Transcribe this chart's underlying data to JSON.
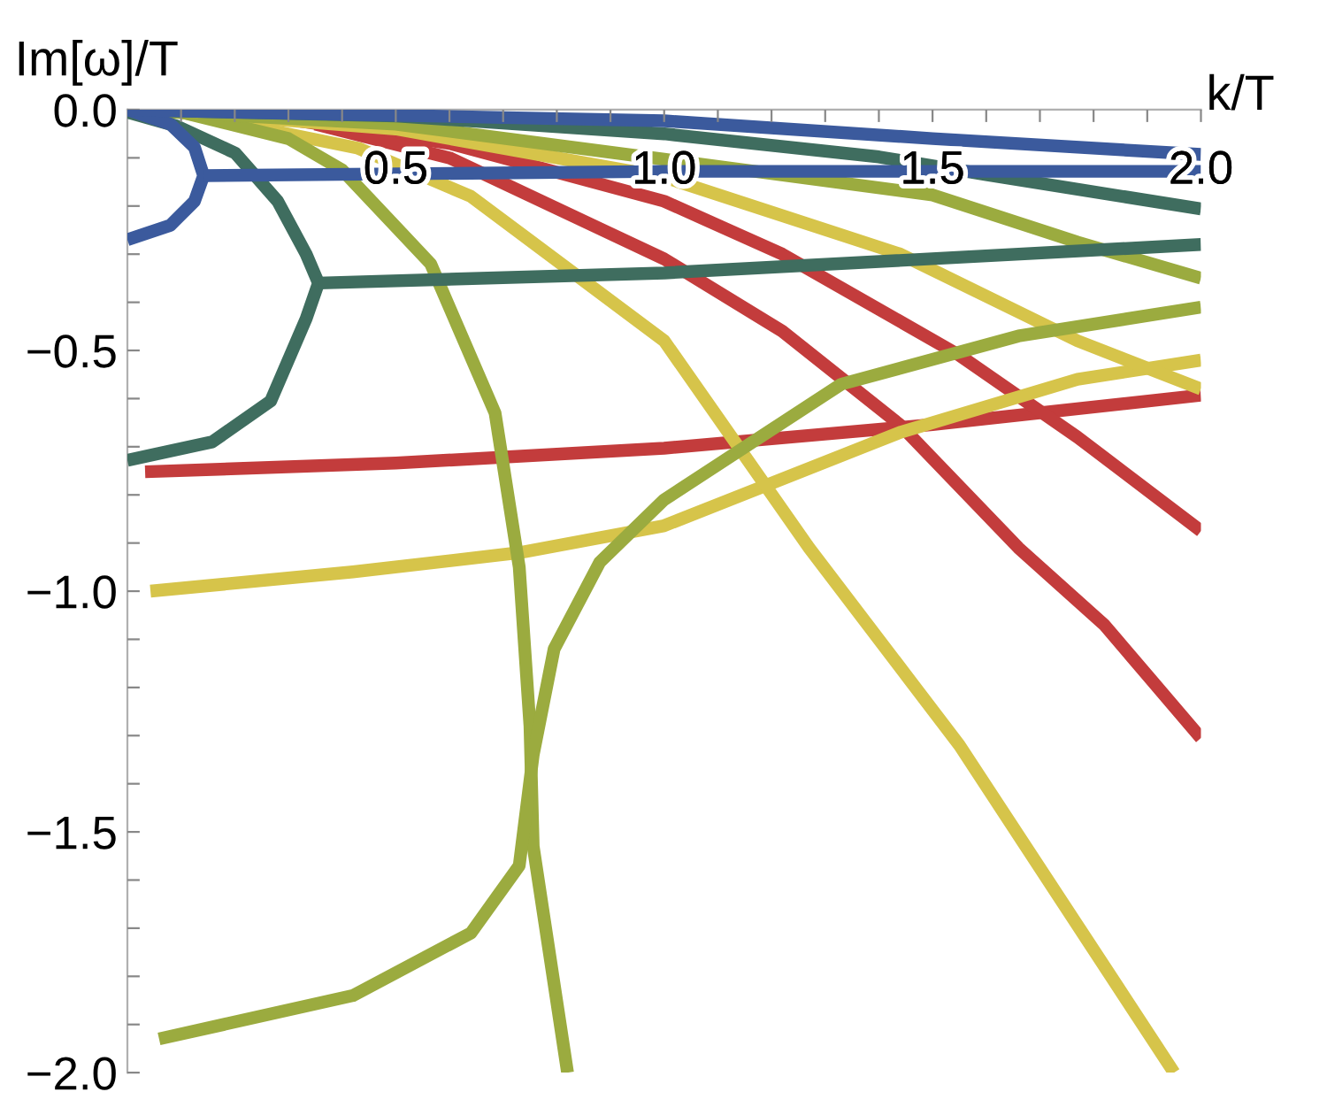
{
  "chart_data": {
    "type": "line",
    "xlabel": "k/T",
    "ylabel": "Im[ω]/T",
    "xlim": [
      0,
      2
    ],
    "ylim": [
      -2,
      0
    ],
    "xticks": [
      {
        "value": 0.1,
        "label": null
      },
      {
        "value": 0.2,
        "label": null
      },
      {
        "value": 0.3,
        "label": null
      },
      {
        "value": 0.4,
        "label": null
      },
      0.5,
      {
        "value": 0.6,
        "label": null
      },
      {
        "value": 0.7,
        "label": null
      },
      {
        "value": 0.8,
        "label": null
      },
      {
        "value": 0.9,
        "label": null
      },
      {
        "value": 1.0,
        "label": "1.0"
      },
      {
        "value": 1.1,
        "label": null
      },
      {
        "value": 1.2,
        "label": null
      },
      {
        "value": 1.3,
        "label": null
      },
      {
        "value": 1.4,
        "label": null
      },
      1.5,
      {
        "value": 1.6,
        "label": null
      },
      {
        "value": 1.7,
        "label": null
      },
      {
        "value": 1.8,
        "label": null
      },
      {
        "value": 1.9,
        "label": null
      },
      {
        "value": 2.0,
        "label": "2.0"
      }
    ],
    "yticks": [
      {
        "value": 0.0,
        "label": "0.0"
      },
      {
        "value": -0.1,
        "label": null
      },
      {
        "value": -0.2,
        "label": null
      },
      {
        "value": -0.3,
        "label": null
      },
      {
        "value": -0.4,
        "label": null
      },
      {
        "value": -0.5,
        "label": "−0.5"
      },
      {
        "value": -0.6,
        "label": null
      },
      {
        "value": -0.7,
        "label": null
      },
      {
        "value": -0.8,
        "label": null
      },
      {
        "value": -0.9,
        "label": null
      },
      {
        "value": -1.0,
        "label": "−1.0"
      },
      {
        "value": -1.1,
        "label": null
      },
      {
        "value": -1.2,
        "label": null
      },
      {
        "value": -1.3,
        "label": null
      },
      {
        "value": -1.4,
        "label": null
      },
      {
        "value": -1.5,
        "label": "−1.5"
      },
      {
        "value": -1.6,
        "label": null
      },
      {
        "value": -1.7,
        "label": null
      },
      {
        "value": -1.8,
        "label": null
      },
      {
        "value": -1.9,
        "label": null
      },
      {
        "value": -2.0,
        "label": "−2.0"
      }
    ],
    "line_style": "solid",
    "grid": false,
    "legend": false,
    "series": [
      {
        "color": "#c33c3c",
        "x": [
          0.033,
          0.5,
          1.0,
          1.5,
          2.0
        ],
        "values": [
          -0.752,
          -0.734,
          -0.703,
          -0.654,
          -0.593
        ]
      },
      {
        "color": "#c33c3c",
        "x": [
          0.3,
          0.6,
          1.0,
          1.22,
          1.55,
          1.77,
          2.0
        ],
        "values": [
          -0.02,
          -0.07,
          -0.19,
          -0.3,
          -0.51,
          -0.68,
          -0.875
        ]
      },
      {
        "color": "#c33c3c",
        "x": [
          0.35,
          0.6,
          1.0,
          1.22,
          1.44,
          1.66,
          1.82,
          2.0
        ],
        "values": [
          -0.03,
          -0.1,
          -0.31,
          -0.46,
          -0.655,
          -0.91,
          -1.07,
          -1.305
        ]
      },
      {
        "color": "#d6c44a",
        "x": [
          0.043,
          0.42,
          0.73,
          1.0,
          1.44,
          1.77,
          2.0
        ],
        "values": [
          -1.0,
          -0.96,
          -0.92,
          -0.864,
          -0.67,
          -0.56,
          -0.52
        ]
      },
      {
        "color": "#d6c44a",
        "x": [
          0.1,
          0.5,
          1.0,
          1.44,
          1.77,
          2.0
        ],
        "values": [
          -0.005,
          -0.04,
          -0.14,
          -0.3,
          -0.48,
          -0.58
        ]
      },
      {
        "color": "#d6c44a",
        "x": [
          0.1,
          0.43,
          0.64,
          1.0,
          1.27,
          1.55,
          1.95
        ],
        "values": [
          -0.005,
          -0.08,
          -0.18,
          -0.48,
          -0.91,
          -1.32,
          -2.0
        ]
      },
      {
        "color": "#9bab3f",
        "x": [
          0.1,
          0.3,
          0.4,
          0.565,
          0.685,
          0.73,
          0.75,
          0.756,
          0.82
        ],
        "values": [
          -0.005,
          -0.06,
          -0.125,
          -0.32,
          -0.63,
          -0.95,
          -1.28,
          -1.53,
          -2.0
        ]
      },
      {
        "color": "#9bab3f",
        "x": [
          0.059,
          0.42,
          0.64,
          0.73,
          0.756,
          0.795,
          0.88,
          1.0,
          1.33,
          1.66,
          2.0
        ],
        "values": [
          -1.93,
          -1.84,
          -1.71,
          -1.57,
          -1.34,
          -1.12,
          -0.94,
          -0.81,
          -0.57,
          -0.47,
          -0.41
        ]
      },
      {
        "color": "#9bab3f",
        "x": [
          0.0,
          0.5,
          1.0,
          1.5,
          1.77,
          2.0
        ],
        "values": [
          0.0,
          -0.03,
          -0.103,
          -0.177,
          -0.275,
          -0.35
        ]
      },
      {
        "color": "#3f6d5f",
        "x": [
          0.0,
          0.092,
          0.201,
          0.28,
          0.333,
          0.356,
          0.333,
          0.267,
          0.158,
          0.0
        ],
        "values": [
          -0.005,
          -0.034,
          -0.09,
          -0.19,
          -0.3,
          -0.36,
          -0.434,
          -0.605,
          -0.69,
          -0.728
        ]
      },
      {
        "color": "#3f6d5f",
        "x": [
          0.356,
          1.0,
          2.0
        ],
        "values": [
          -0.36,
          -0.339,
          -0.28
        ]
      },
      {
        "color": "#3f6d5f",
        "x": [
          0.0,
          0.5,
          1.0,
          1.4,
          1.6,
          2.0
        ],
        "values": [
          0.0,
          -0.013,
          -0.05,
          -0.098,
          -0.135,
          -0.206
        ]
      },
      {
        "color": "#3b5a9d",
        "x": [
          0.0,
          0.08,
          0.125,
          0.142,
          0.125,
          0.08,
          0.0
        ],
        "values": [
          0.0,
          -0.03,
          -0.078,
          -0.137,
          -0.19,
          -0.24,
          -0.27
        ]
      },
      {
        "color": "#3b5a9d",
        "x": [
          0.142,
          1.0,
          2.0
        ],
        "values": [
          -0.137,
          -0.128,
          -0.128
        ]
      },
      {
        "color": "#3b5a9d",
        "x": [
          0.0,
          0.2,
          1.0,
          1.5,
          2.0
        ],
        "values": [
          0.0,
          -0.005,
          -0.023,
          -0.06,
          -0.093
        ]
      }
    ]
  }
}
